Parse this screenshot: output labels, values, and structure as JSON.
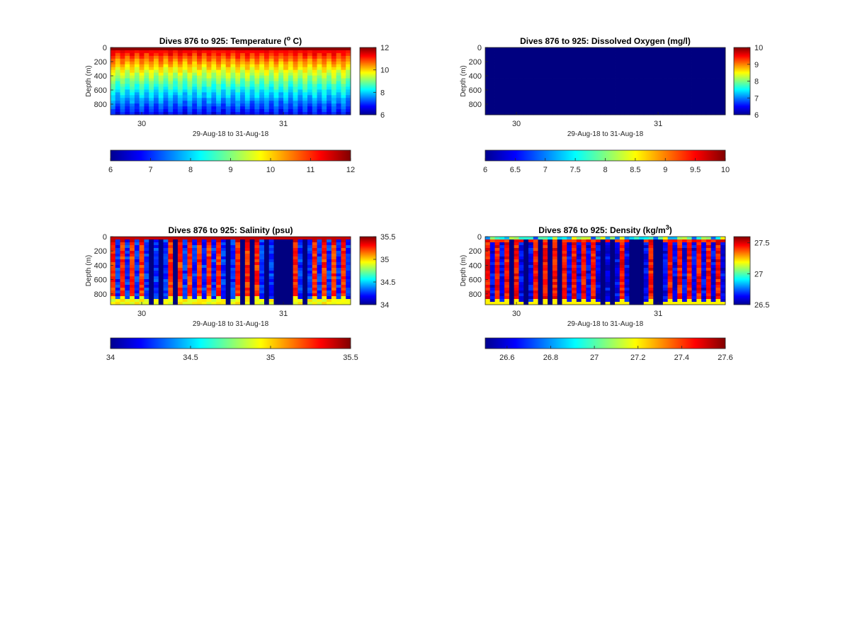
{
  "figure": {
    "date_range_label": "29-Aug-18 to 31-Aug-18",
    "depth_axis_label": "Depth (m)"
  },
  "chart_data": [
    {
      "type": "heatmap",
      "variable": "temperature",
      "title": "Dives 876 to 925: Temperature (",
      "title_sup": "o",
      "title_after": " C)",
      "xlabel": "29-Aug-18 to 31-Aug-18",
      "ylabel": "Depth (m)",
      "x_ticks": [
        "30",
        "31"
      ],
      "y_ticks": [
        0,
        200,
        400,
        600,
        800
      ],
      "ylim": [
        0,
        950
      ],
      "y_reversed": true,
      "clim": [
        6,
        12
      ],
      "colormap": "jet",
      "colorbar_ticks": [
        12,
        10,
        8,
        6
      ],
      "bottom_colorbar_ticks": [
        6,
        7,
        8,
        9,
        10,
        11,
        12
      ],
      "column_count": 50,
      "pattern": "striped casts, warm 11-12 near surface cooling to about 6.5 at 950 m",
      "surface_value": 11.8,
      "bottom_value": 6.6
    },
    {
      "type": "heatmap",
      "variable": "oxygen",
      "title": "Dives 876 to 925: Dissolved Oxygen (mg/l)",
      "xlabel": "29-Aug-18 to 31-Aug-18",
      "ylabel": "Depth (m)",
      "x_ticks": [
        "30",
        "31"
      ],
      "y_ticks": [
        0,
        200,
        400,
        600,
        800
      ],
      "ylim": [
        0,
        950
      ],
      "y_reversed": true,
      "clim": [
        6,
        10
      ],
      "colormap": "jet",
      "colorbar_ticks": [
        10,
        9,
        8,
        7,
        6
      ],
      "bottom_colorbar_ticks": [
        "6",
        "6.5",
        "7",
        "7.5",
        "8",
        "8.5",
        "9",
        "9.5",
        "10"
      ],
      "uniform_value": 6
    },
    {
      "type": "heatmap",
      "variable": "salinity",
      "title": "Dives 876 to 925: Salinity (psu)",
      "xlabel": "29-Aug-18 to 31-Aug-18",
      "ylabel": "Depth (m)",
      "x_ticks": [
        "30",
        "31"
      ],
      "y_ticks": [
        0,
        200,
        400,
        600,
        800
      ],
      "ylim": [
        0,
        950
      ],
      "y_reversed": true,
      "clim": [
        34,
        35.5
      ],
      "colormap": "jet",
      "colorbar_ticks": [
        "35.5",
        "35",
        "34.5",
        "34"
      ],
      "bottom_colorbar_ticks": [
        "34",
        "34.5",
        "35",
        "35.5"
      ],
      "pattern": "striped casts with missing-data gaps, about 35.3 mid-depth, near 34.9 at depth",
      "gap_columns": [
        8,
        10,
        13,
        24,
        27,
        29,
        32,
        34,
        35,
        36,
        37,
        40
      ]
    },
    {
      "type": "heatmap",
      "variable": "density",
      "title": "Dives 876 to 925: Density (kg/m",
      "title_sup": "3",
      "title_after": ")",
      "xlabel": "29-Aug-18 to 31-Aug-18",
      "ylabel": "Depth (m)",
      "x_ticks": [
        "30",
        "31"
      ],
      "y_ticks": [
        0,
        200,
        400,
        600,
        800
      ],
      "ylim": [
        0,
        950
      ],
      "y_reversed": true,
      "clim": [
        26.5,
        27.6
      ],
      "colormap": "jet",
      "colorbar_ticks": [
        "27.5",
        "27",
        "26.5"
      ],
      "bottom_colorbar_ticks": [
        "26.6",
        "26.8",
        "27",
        "27.2",
        "27.4",
        "27.6"
      ],
      "pattern": "striped casts with missing-data gaps, about 27.45 mid-depth, 27.2 near 900 m",
      "gap_columns": [
        5,
        8,
        11,
        13,
        15,
        24,
        26,
        30,
        31,
        32,
        35,
        36
      ]
    }
  ]
}
